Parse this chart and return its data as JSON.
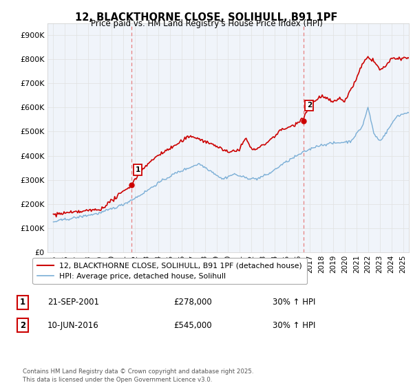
{
  "title_line1": "12, BLACKTHORNE CLOSE, SOLIHULL, B91 1PF",
  "title_line2": "Price paid vs. HM Land Registry's House Price Index (HPI)",
  "xlim": [
    1994.5,
    2025.5
  ],
  "ylim": [
    0,
    950000
  ],
  "yticks": [
    0,
    100000,
    200000,
    300000,
    400000,
    500000,
    600000,
    700000,
    800000,
    900000
  ],
  "ytick_labels": [
    "£0",
    "£100K",
    "£200K",
    "£300K",
    "£400K",
    "£500K",
    "£600K",
    "£700K",
    "£800K",
    "£900K"
  ],
  "xticks": [
    1995,
    1996,
    1997,
    1998,
    1999,
    2000,
    2001,
    2002,
    2003,
    2004,
    2005,
    2006,
    2007,
    2008,
    2009,
    2010,
    2011,
    2012,
    2013,
    2014,
    2015,
    2016,
    2017,
    2018,
    2019,
    2020,
    2021,
    2022,
    2023,
    2024,
    2025
  ],
  "sale1_year": 2001.72,
  "sale1_price": 278000,
  "sale2_year": 2016.44,
  "sale2_price": 545000,
  "legend_line1": "12, BLACKTHORNE CLOSE, SOLIHULL, B91 1PF (detached house)",
  "legend_line2": "HPI: Average price, detached house, Solihull",
  "table_row1": [
    "1",
    "21-SEP-2001",
    "£278,000",
    "30% ↑ HPI"
  ],
  "table_row2": [
    "2",
    "10-JUN-2016",
    "£545,000",
    "30% ↑ HPI"
  ],
  "footer": "Contains HM Land Registry data © Crown copyright and database right 2025.\nThis data is licensed under the Open Government Licence v3.0.",
  "red_color": "#cc0000",
  "blue_color": "#7aaed6",
  "vline_color": "#e88080",
  "grid_color": "#e0e0e0",
  "bg_color": "#f0f4fa"
}
